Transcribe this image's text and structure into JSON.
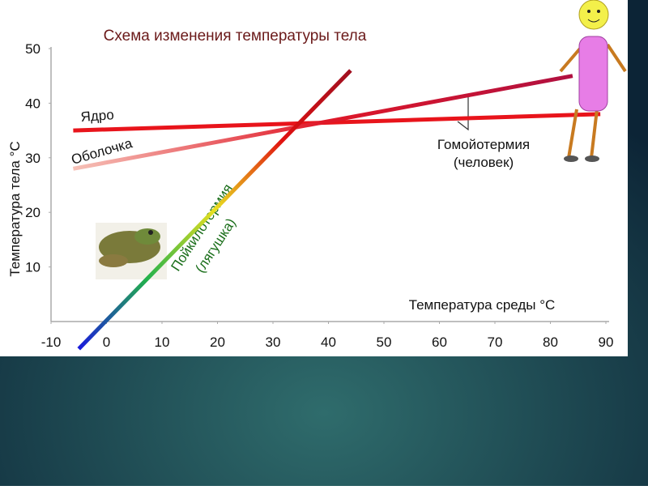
{
  "chart_data": {
    "type": "line",
    "title": "Схема изменения температуры тела",
    "y_label": "Температура тела °С",
    "x_label": "Температура среды °С",
    "xlim": [
      -10,
      90
    ],
    "xticks": [
      -10,
      0,
      10,
      20,
      30,
      40,
      50,
      60,
      70,
      80,
      90
    ],
    "ylim": [
      0,
      50
    ],
    "yticks": [
      10,
      20,
      30,
      40,
      50
    ],
    "grid": false,
    "series": [
      {
        "name": "Ядро",
        "x": [
          -6,
          89
        ],
        "values": [
          35,
          38
        ],
        "colors": [
          "#e8141b",
          "#e8141b"
        ]
      },
      {
        "name": "Оболочка",
        "x": [
          -6,
          84
        ],
        "values": [
          28,
          45
        ],
        "colors": [
          "#f6c2b8",
          "#e01828",
          "#b01040"
        ]
      },
      {
        "name": "Пойкилотермия",
        "x": [
          -5,
          44
        ],
        "values": [
          -5,
          46
        ],
        "colors": [
          "#1a1adc",
          "#22b14c",
          "#e8e020",
          "#e01010",
          "#a01020"
        ]
      }
    ],
    "annotations": [
      "(лягушка)",
      "Гомойотермия",
      "(человек)"
    ]
  }
}
